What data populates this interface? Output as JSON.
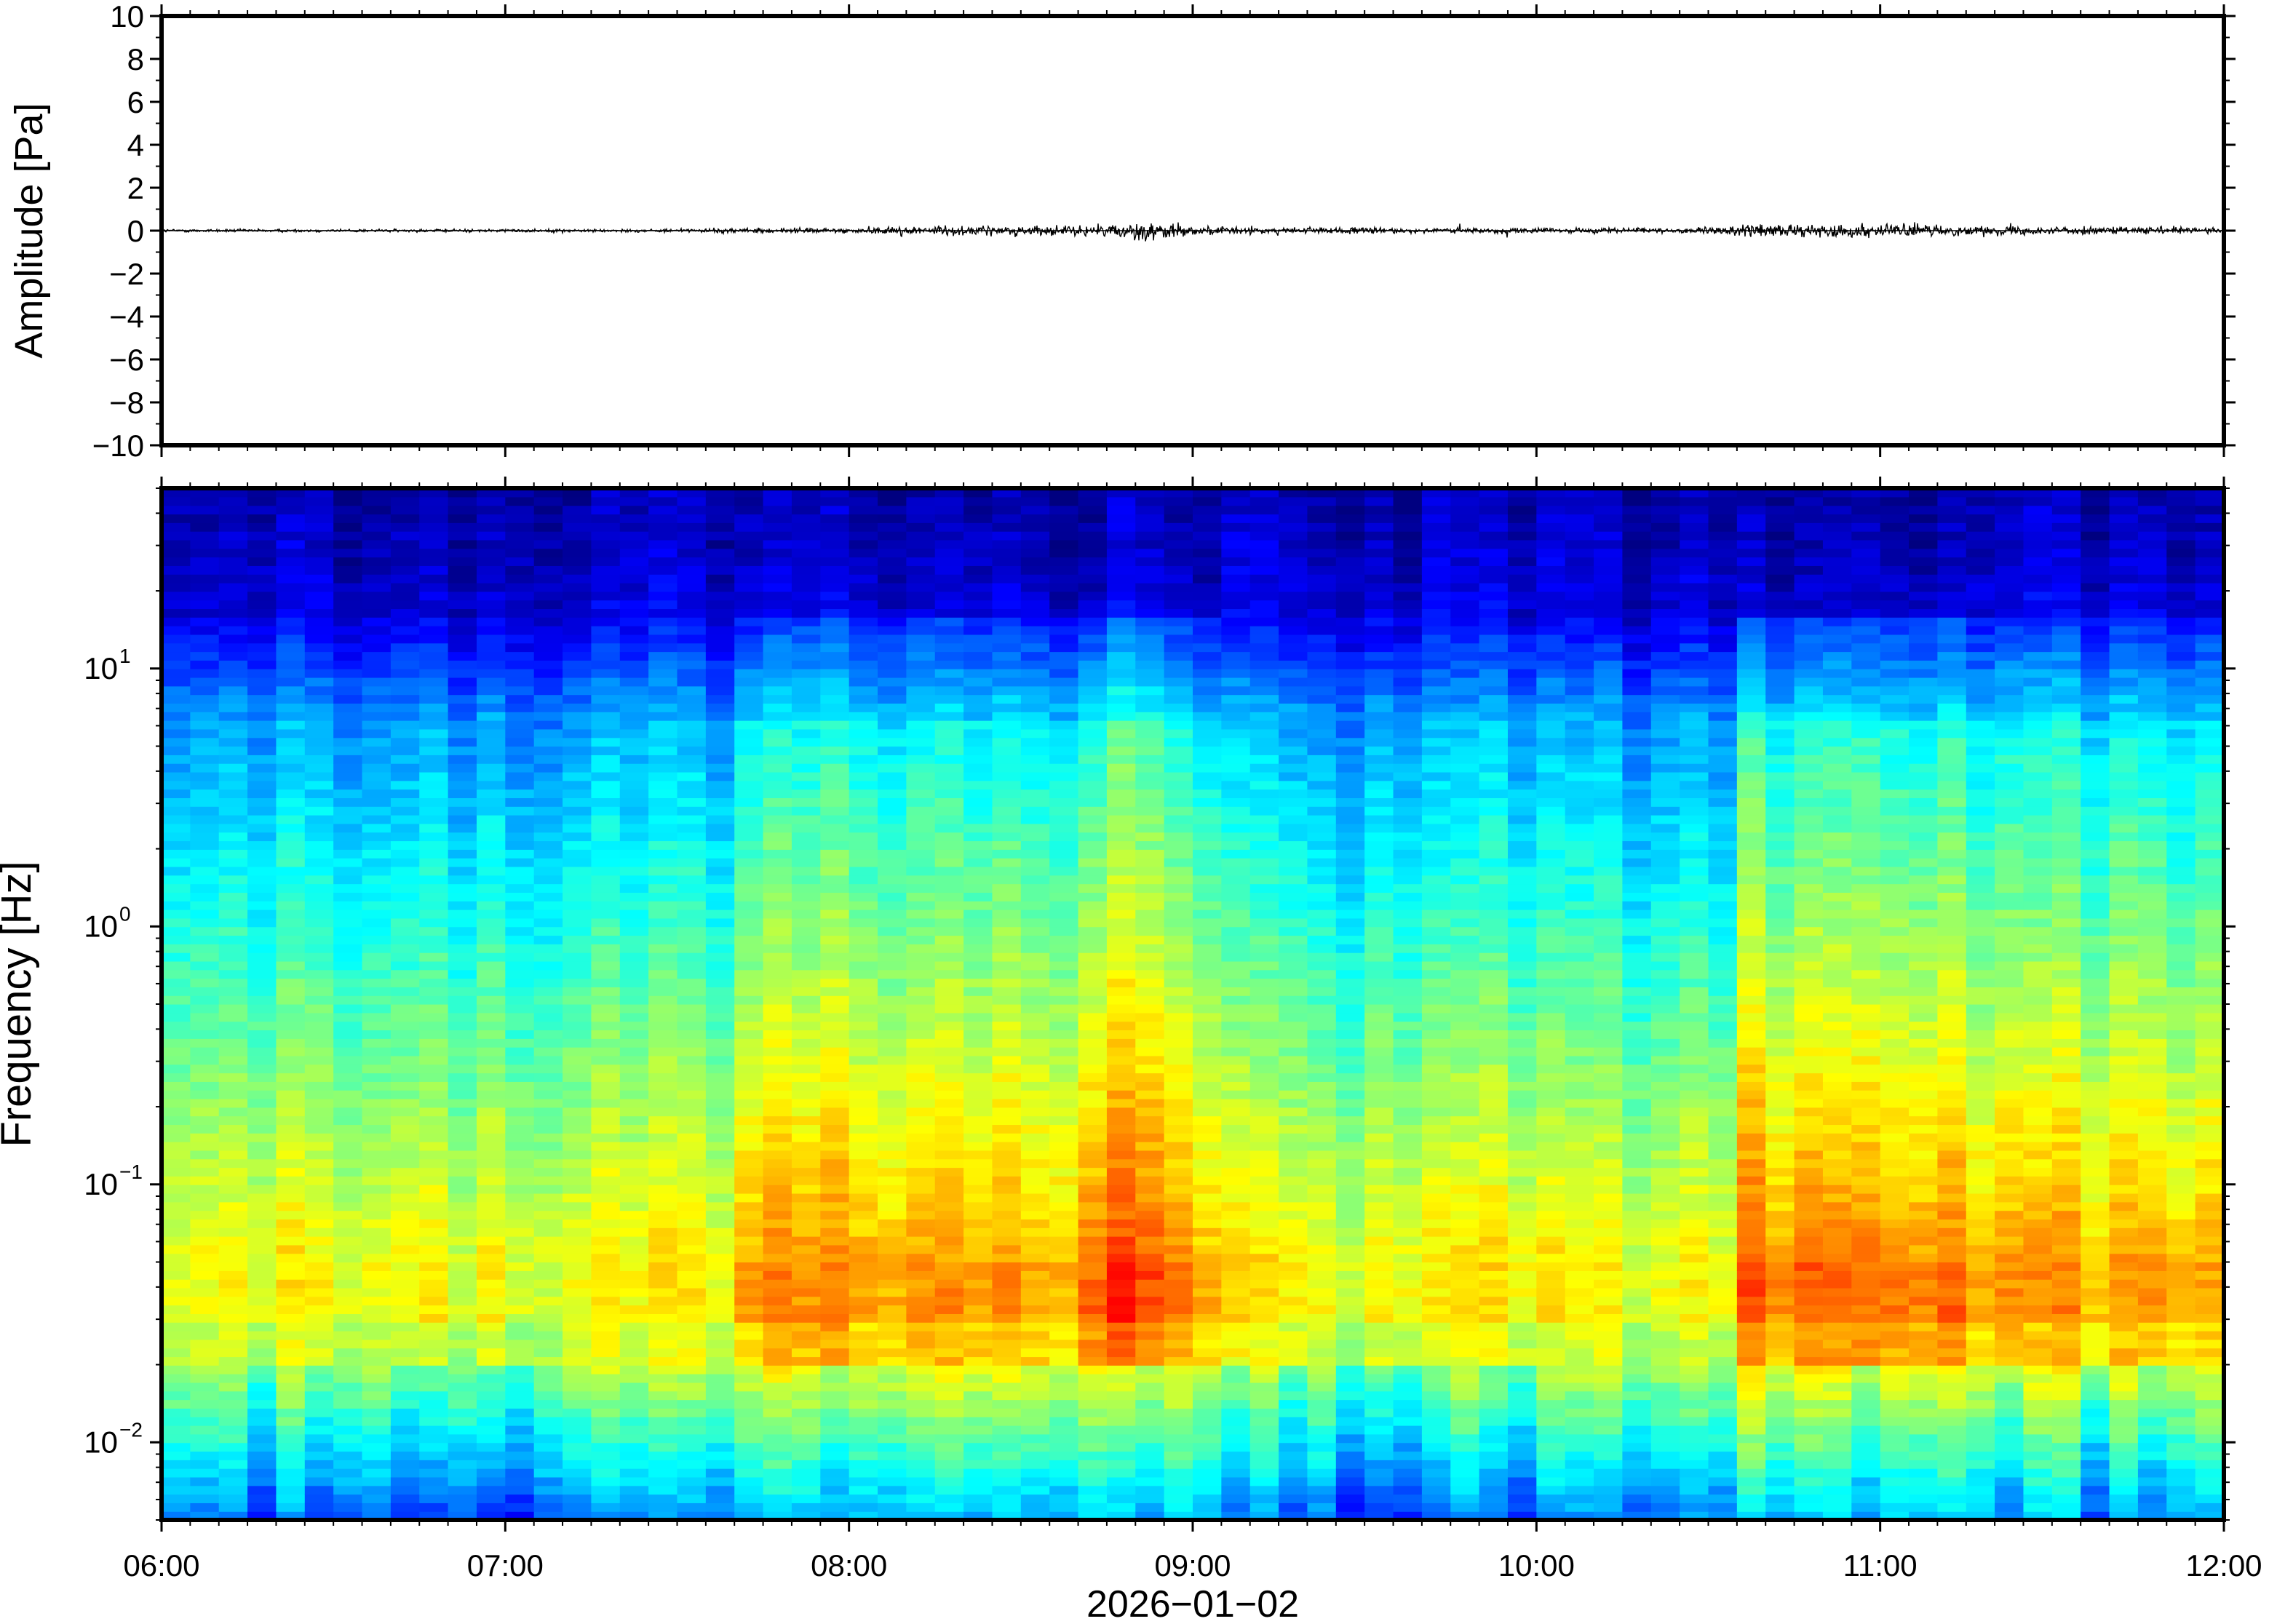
{
  "xaxis": {
    "tick_labels": [
      "06:00",
      "07:00",
      "08:00",
      "09:00",
      "10:00",
      "11:00",
      "12:00"
    ],
    "tick_hours": [
      6,
      7,
      8,
      9,
      10,
      11,
      12
    ],
    "date_label": "2026−01−02"
  },
  "chart_data": [
    {
      "type": "line",
      "title": "",
      "xlabel": "",
      "ylabel": "Amplitude [Pa]",
      "xlim": [
        "06:00",
        "12:00"
      ],
      "ylim": [
        -10,
        10
      ],
      "y_ticks": [
        10,
        8,
        6,
        4,
        2,
        0,
        -2,
        -4,
        -6,
        -8,
        -10
      ],
      "y_tick_labels": [
        "10",
        "8",
        "6",
        "4",
        "2",
        "0",
        "−2",
        "−4",
        "−6",
        "−8",
        "−10"
      ],
      "series": [
        {
          "values_description": "noise envelope (peak amplitude in Pa) over time",
          "time": [
            "06:00",
            "06:30",
            "07:00",
            "07:30",
            "07:40",
            "08:00",
            "08:10",
            "08:30",
            "08:45",
            "08:52",
            "09:00",
            "09:30",
            "10:00",
            "10:30",
            "10:37",
            "10:50",
            "11:00",
            "11:10",
            "11:30",
            "12:00"
          ],
          "envelope": [
            0.15,
            0.15,
            0.15,
            0.15,
            0.25,
            0.25,
            0.45,
            0.45,
            0.5,
            1.1,
            0.4,
            0.3,
            0.25,
            0.3,
            0.7,
            0.55,
            0.7,
            0.5,
            0.35,
            0.35
          ]
        }
      ]
    },
    {
      "type": "heatmap",
      "title": "",
      "xlabel": "2026−01−02",
      "ylabel": "Frequency [Hz]",
      "xlim": [
        "06:00",
        "12:00"
      ],
      "ylim": [
        0.005,
        50
      ],
      "yscale": "log",
      "y_ticks": [
        10,
        1,
        0.1,
        0.01
      ],
      "y_tick_labels": [
        {
          "base": "10",
          "exp": "1"
        },
        {
          "base": "10",
          "exp": "0"
        },
        {
          "base": "10",
          "exp": "−1"
        },
        {
          "base": "10",
          "exp": "−2"
        }
      ],
      "colormap": "jet",
      "time_segments": 72,
      "frequency_bins": 120,
      "activity_windows": [
        {
          "start": "07:40",
          "end": "09:05",
          "strength": 0.6
        },
        {
          "start": "08:40",
          "end": "09:00",
          "strength": 0.9
        },
        {
          "start": "10:35",
          "end": "11:15",
          "strength": 0.9
        },
        {
          "start": "11:15",
          "end": "12:00",
          "strength": 0.5
        }
      ],
      "peak_band_hz": [
        0.02,
        0.12
      ]
    }
  ]
}
